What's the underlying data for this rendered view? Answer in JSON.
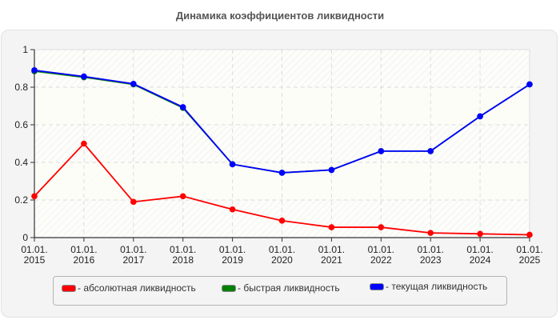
{
  "chart_data": {
    "type": "line",
    "title": "Динамика коэффициентов ликвидности",
    "xlabel": "",
    "ylabel": "",
    "ylim": [
      0,
      1
    ],
    "yticks": [
      "0",
      "0.2",
      "0.4",
      "0.6",
      "0.8",
      "1"
    ],
    "grid": true,
    "legend_position": "bottom",
    "categories": [
      "01.01.2015",
      "01.01.2016",
      "01.01.2017",
      "01.01.2018",
      "01.01.2019",
      "01.01.2020",
      "01.01.2021",
      "01.01.2022",
      "01.01.2023",
      "01.01.2024",
      "01.01.2025"
    ],
    "series": [
      {
        "name": "абсолютная ликвидность",
        "color": "#ff0000",
        "values": [
          0.22,
          0.5,
          0.19,
          0.22,
          0.15,
          0.09,
          0.055,
          0.055,
          0.025,
          0.02,
          0.015
        ]
      },
      {
        "name": "быстрая ликвидность",
        "color": "#008000",
        "values": [
          0.885,
          0.853,
          0.815,
          0.69,
          0.39,
          0.345,
          0.36,
          0.46,
          0.46,
          0.645,
          0.815
        ]
      },
      {
        "name": "текущая ликвидность",
        "color": "#0000ff",
        "values": [
          0.89,
          0.857,
          0.818,
          0.694,
          0.39,
          0.345,
          0.36,
          0.46,
          0.46,
          0.645,
          0.815
        ]
      }
    ]
  },
  "legend": {
    "items": [
      {
        "label": "- абсолютная ликвидность",
        "color": "#ff0000"
      },
      {
        "label": "- быстрая ликвидность",
        "color": "#008000"
      },
      {
        "label": "- текущая ликвидность",
        "color": "#0000ff"
      }
    ]
  }
}
